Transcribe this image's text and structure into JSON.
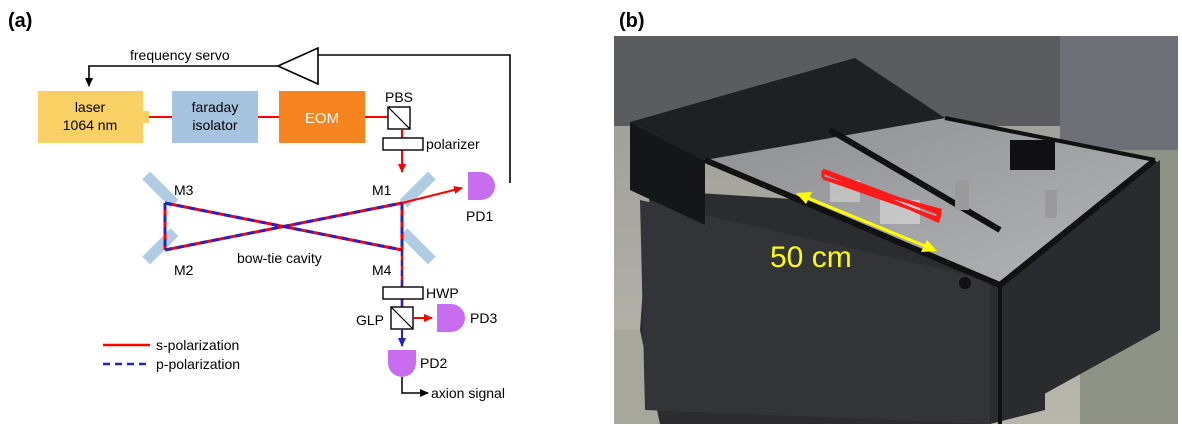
{
  "panel_a": {
    "tag": "(a)",
    "servo_label": "frequency servo",
    "laser_line1": "laser",
    "laser_line2": "1064 nm",
    "isolator_line1": "faraday",
    "isolator_line2": "isolator",
    "eom": "EOM",
    "pbs": "PBS",
    "polarizer": "polarizer",
    "m1": "M1",
    "m2": "M2",
    "m3": "M3",
    "m4": "M4",
    "pd1": "PD1",
    "pd2": "PD2",
    "pd3": "PD3",
    "cavity": "bow-tie cavity",
    "hwp": "HWP",
    "glp": "GLP",
    "axion": "axion signal",
    "legend_s": "s-polarization",
    "legend_p": "p-polarization"
  },
  "panel_b": {
    "tag": "(b)",
    "scale_label": "50 cm"
  },
  "colors": {
    "laser_box": "#f9d063",
    "isolator_box": "#a6c4e0",
    "eom_box": "#f6851f",
    "mirror": "#b0cce3",
    "detector": "#c86cf0",
    "s_beam": "#ff0000",
    "p_beam": "#2323c8"
  }
}
